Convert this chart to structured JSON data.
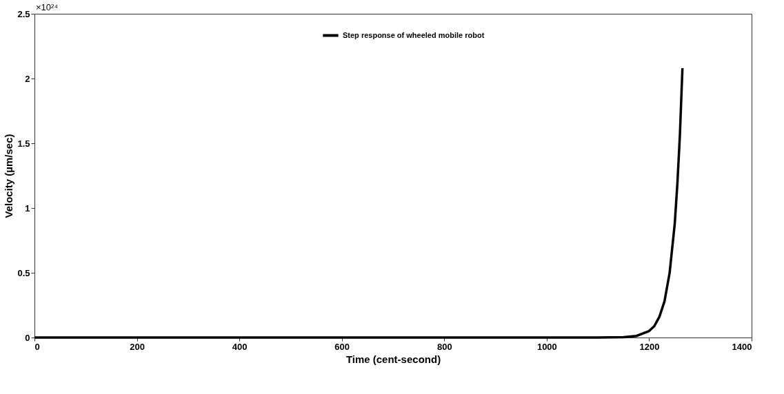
{
  "chart_data": {
    "type": "line",
    "xlabel": "Time (cent-second)",
    "ylabel": "Velocity (µm/sec)",
    "annotations": [
      "×10²⁴"
    ],
    "x": [
      0,
      200,
      400,
      600,
      800,
      1000,
      1100,
      1150,
      1175,
      1200,
      1210,
      1220,
      1230,
      1240,
      1250,
      1255,
      1260,
      1265
    ],
    "series": [
      {
        "name": "Step response of wheeled mobile robot",
        "color": "#000000",
        "values": [
          0,
          0,
          0,
          0,
          0,
          0,
          0,
          0.003,
          0.012,
          0.05,
          0.088,
          0.16,
          0.28,
          0.5,
          0.88,
          1.18,
          1.56,
          2.08
        ]
      }
    ],
    "xlim": [
      0,
      1400
    ],
    "xticks": [
      0,
      200,
      400,
      600,
      800,
      1000,
      1200,
      1400
    ],
    "ylim": [
      0,
      2.5
    ],
    "yticks": [
      0,
      0.5,
      1,
      1.5,
      2,
      2.5
    ],
    "grid": false,
    "legend": "top",
    "marker": "none",
    "line_style": "solid"
  }
}
